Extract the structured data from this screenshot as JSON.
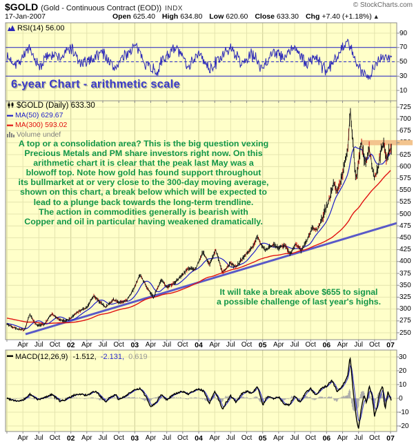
{
  "header": {
    "symbol": "$GOLD",
    "description": "(Gold - Continuous Contract (EOD))",
    "exchange": "INDX",
    "copyright": "© StockCharts.com",
    "date": "17-Jan-2007",
    "quote": {
      "open_label": "Open",
      "open": "625.40",
      "high_label": "High",
      "high": "634.80",
      "low_label": "Low",
      "low": "620.60",
      "close_label": "Close",
      "close": "633.30",
      "chg_label": "Chg",
      "chg": "+7.40 (+1.18%)",
      "direction_icon": "▲"
    }
  },
  "rsi_panel": {
    "label": "RSI(14) 56.00"
  },
  "title_banner": "6-year Chart - arithmetic scale",
  "main_panel": {
    "legend": [
      {
        "label": "$GOLD (Daily) 633.30",
        "color": "#000000",
        "icon": "candlestick-icon"
      },
      {
        "label": "MA(50) 629.67",
        "color": "#1C1CC8",
        "icon": "line-swatch-icon"
      },
      {
        "label": "MA(300) 593.02",
        "color": "#E01010",
        "icon": "line-swatch-icon"
      },
      {
        "label": "Volume undef",
        "color": "#808080",
        "icon": "histogram-icon"
      }
    ],
    "annotation_main": {
      "lines": [
        "A top or a consolidation area? This is the big question vexing",
        "Precious Metals and PM share investors right now. On this",
        "arithmetic chart it is clear that the peak last May was a",
        "blowoff top. Note how gold has found support throughout",
        "its bullmarket at or very close to the 300-day moving average,",
        "shown on this chart, a break below which will be expected to",
        "lead to a plunge back towards the long-term trendline.",
        "The action in commodities generally is bearish with",
        "Copper and oil in particular having weakened dramatically."
      ]
    },
    "annotation_secondary": {
      "lines": [
        "It will take a break above $655 to signal",
        "a possible challenge of last year's highs."
      ]
    }
  },
  "macd_panel": {
    "label": "MACD(12,26,9)",
    "value_macd": "-1.512,",
    "value_signal": "-2.131,",
    "value_hist": "0.619"
  },
  "x_axis": {
    "ticks": [
      {
        "month": 3,
        "label": "Apr",
        "bold": false
      },
      {
        "month": 6,
        "label": "Jul",
        "bold": false
      },
      {
        "month": 9,
        "label": "Oct",
        "bold": false
      },
      {
        "month": 12,
        "label": "02",
        "bold": true
      },
      {
        "month": 15,
        "label": "Apr",
        "bold": false
      },
      {
        "month": 18,
        "label": "Jul",
        "bold": false
      },
      {
        "month": 21,
        "label": "Oct",
        "bold": false
      },
      {
        "month": 24,
        "label": "03",
        "bold": true
      },
      {
        "month": 27,
        "label": "Apr",
        "bold": false
      },
      {
        "month": 30,
        "label": "Jul",
        "bold": false
      },
      {
        "month": 33,
        "label": "Oct",
        "bold": false
      },
      {
        "month": 36,
        "label": "04",
        "bold": true
      },
      {
        "month": 39,
        "label": "Apr",
        "bold": false
      },
      {
        "month": 42,
        "label": "Jul",
        "bold": false
      },
      {
        "month": 45,
        "label": "Oct",
        "bold": false
      },
      {
        "month": 48,
        "label": "05",
        "bold": true
      },
      {
        "month": 51,
        "label": "Apr",
        "bold": false
      },
      {
        "month": 54,
        "label": "Jul",
        "bold": false
      },
      {
        "month": 57,
        "label": "Oct",
        "bold": false
      },
      {
        "month": 60,
        "label": "06",
        "bold": true
      },
      {
        "month": 63,
        "label": "Apr",
        "bold": false
      },
      {
        "month": 66,
        "label": "Jul",
        "bold": false
      },
      {
        "month": 69,
        "label": "Oct",
        "bold": false
      },
      {
        "month": 72,
        "label": "07",
        "bold": true
      }
    ]
  },
  "colors": {
    "panel_bg": "#FFFFC9",
    "grid": "#E4E4AE",
    "grid_year": "#CCCC96",
    "border": "#8B8B8B",
    "rsi_line": "#2B28B8",
    "guide_blue": "#2222C8",
    "ma50": "#1C1CC8",
    "ma300": "#E01010",
    "trendline": "#5A5AC8",
    "bar_up": "#111111",
    "bar_down": "#CC1111",
    "macd_line": "#000000",
    "macd_signal": "#2828CC",
    "macd_hist": "#A9A9A9",
    "band": "#F3C48E",
    "annotation_green": "#129648",
    "title_blue": "#3C3CC8"
  },
  "chart_data": [
    {
      "type": "line",
      "panel": "rsi",
      "title": "RSI(14)",
      "current": 56.0,
      "x_months_since_jan2001": [
        0,
        2,
        4,
        6,
        8,
        10,
        12,
        14,
        16,
        18,
        20,
        22,
        24,
        26,
        28,
        30,
        32,
        34,
        36,
        38,
        40,
        42,
        44,
        46,
        48,
        50,
        52,
        54,
        56,
        58,
        60,
        62,
        64,
        66,
        68,
        70,
        72
      ],
      "values": [
        55,
        48,
        68,
        42,
        62,
        55,
        70,
        45,
        55,
        65,
        40,
        58,
        72,
        50,
        35,
        60,
        68,
        45,
        62,
        38,
        55,
        70,
        48,
        60,
        42,
        66,
        54,
        72,
        46,
        58,
        34,
        62,
        78,
        40,
        30,
        56,
        56
      ],
      "ylim": [
        0,
        100
      ],
      "axis_ticks": [
        90,
        70,
        50,
        30,
        10
      ],
      "hlines": {
        "overbought": 70,
        "mid": 50,
        "oversold": 30
      },
      "grid": true,
      "legend_position": "top-left"
    },
    {
      "type": "ohlc",
      "panel": "price",
      "title": "$GOLD (Daily)",
      "current": 633.3,
      "points": [
        [
          -16,
          300
        ],
        [
          -12,
          291
        ],
        [
          -8,
          284
        ],
        [
          -4,
          274
        ],
        [
          0,
          268
        ],
        [
          1,
          263
        ],
        [
          2,
          258
        ],
        [
          3.3,
          256
        ],
        [
          4.3,
          289
        ],
        [
          5.5,
          266
        ],
        [
          7,
          268
        ],
        [
          8.5,
          291
        ],
        [
          9.5,
          279
        ],
        [
          11,
          274
        ],
        [
          12,
          281
        ],
        [
          13,
          292
        ],
        [
          14,
          298
        ],
        [
          15,
          304
        ],
        [
          16.3,
          327
        ],
        [
          17.5,
          314
        ],
        [
          18.5,
          304
        ],
        [
          20,
          320
        ],
        [
          21,
          314
        ],
        [
          22.5,
          318
        ],
        [
          24,
          347
        ],
        [
          25,
          373
        ],
        [
          26.3,
          344
        ],
        [
          27.5,
          324
        ],
        [
          29,
          363
        ],
        [
          30,
          345
        ],
        [
          31.5,
          356
        ],
        [
          33,
          372
        ],
        [
          34,
          386
        ],
        [
          35.3,
          383
        ],
        [
          36,
          400
        ],
        [
          36.8,
          420
        ],
        [
          38,
          393
        ],
        [
          39.2,
          425
        ],
        [
          40.5,
          376
        ],
        [
          42,
          397
        ],
        [
          43,
          388
        ],
        [
          44.2,
          407
        ],
        [
          45.3,
          420
        ],
        [
          46.3,
          432
        ],
        [
          47,
          454
        ],
        [
          47.8,
          435
        ],
        [
          48.5,
          423
        ],
        [
          50,
          437
        ],
        [
          51,
          428
        ],
        [
          52.2,
          435
        ],
        [
          53.2,
          416
        ],
        [
          54.2,
          438
        ],
        [
          55.2,
          424
        ],
        [
          56.3,
          444
        ],
        [
          57.3,
          470
        ],
        [
          58.3,
          467
        ],
        [
          59.3,
          494
        ],
        [
          60,
          516
        ],
        [
          60.8,
          541
        ],
        [
          61.3,
          567
        ],
        [
          62,
          548
        ],
        [
          63,
          584
        ],
        [
          64,
          642
        ],
        [
          64.45,
          722
        ],
        [
          65.5,
          569
        ],
        [
          66.5,
          651
        ],
        [
          67.3,
          604
        ],
        [
          68,
          640
        ],
        [
          68.9,
          575
        ],
        [
          69.6,
          596
        ],
        [
          70.3,
          638
        ],
        [
          70.8,
          647
        ],
        [
          71.3,
          611
        ],
        [
          71.8,
          637
        ],
        [
          72.2,
          633
        ]
      ],
      "ma50": {
        "period": 50,
        "current": 629.67,
        "window_months": 2.3
      },
      "ma300": {
        "period": 300,
        "current": 593.02,
        "window_months": 13.6
      },
      "trendline": {
        "from_month": 3.5,
        "from_value": 247,
        "to_month": 73.2,
        "to_value": 481
      },
      "resistance_band": {
        "value": 650,
        "from_month": 66.6
      },
      "ylim": [
        235,
        740
      ],
      "axis_ticks": [
        725,
        700,
        675,
        650,
        625,
        600,
        575,
        550,
        525,
        500,
        475,
        450,
        425,
        400,
        375,
        350,
        325,
        300,
        275,
        250
      ],
      "grid": true,
      "scale": "arithmetic",
      "span_years": 6
    },
    {
      "type": "line+histogram",
      "panel": "macd",
      "title": "MACD(12,26,9)",
      "current": {
        "macd": -1.512,
        "signal": -2.131,
        "hist": 0.619
      },
      "points": [
        [
          0,
          0
        ],
        [
          1,
          -1
        ],
        [
          2,
          -2
        ],
        [
          3,
          -1.5
        ],
        [
          4.3,
          3
        ],
        [
          5,
          1
        ],
        [
          6,
          -1
        ],
        [
          7,
          0.5
        ],
        [
          8.5,
          3
        ],
        [
          9,
          1
        ],
        [
          10,
          -2
        ],
        [
          11,
          -1
        ],
        [
          12,
          1
        ],
        [
          13,
          3
        ],
        [
          14,
          3
        ],
        [
          15,
          2
        ],
        [
          16.5,
          5
        ],
        [
          17,
          4
        ],
        [
          18.5,
          -3
        ],
        [
          19,
          0
        ],
        [
          20.5,
          3
        ],
        [
          21,
          -1
        ],
        [
          22,
          1
        ],
        [
          23,
          4
        ],
        [
          24,
          6
        ],
        [
          25,
          7
        ],
        [
          26,
          2
        ],
        [
          27,
          -6
        ],
        [
          28,
          -3
        ],
        [
          29,
          3
        ],
        [
          30,
          -1
        ],
        [
          31,
          2
        ],
        [
          32,
          4
        ],
        [
          33,
          5
        ],
        [
          34,
          3
        ],
        [
          35,
          5
        ],
        [
          36,
          7
        ],
        [
          37,
          5
        ],
        [
          38,
          -4
        ],
        [
          39,
          5
        ],
        [
          40,
          -3
        ],
        [
          40.5,
          -8
        ],
        [
          41,
          -4
        ],
        [
          42,
          2
        ],
        [
          43,
          -3
        ],
        [
          44,
          3
        ],
        [
          45,
          5
        ],
        [
          46,
          4
        ],
        [
          47,
          8
        ],
        [
          47.5,
          3
        ],
        [
          48,
          -5
        ],
        [
          49,
          2
        ],
        [
          50,
          0
        ],
        [
          51,
          1
        ],
        [
          52,
          -4
        ],
        [
          53,
          -5
        ],
        [
          54,
          2
        ],
        [
          55,
          -3
        ],
        [
          56,
          4
        ],
        [
          57,
          7
        ],
        [
          58,
          2
        ],
        [
          59,
          7
        ],
        [
          60,
          9
        ],
        [
          61,
          13
        ],
        [
          62,
          5
        ],
        [
          63,
          9
        ],
        [
          64,
          17
        ],
        [
          64.4,
          31
        ],
        [
          65,
          5
        ],
        [
          65.6,
          -15
        ],
        [
          66,
          -22
        ],
        [
          66.5,
          -8
        ],
        [
          67,
          2
        ],
        [
          67.5,
          -3
        ],
        [
          68,
          9
        ],
        [
          68.5,
          3
        ],
        [
          69,
          -13
        ],
        [
          69.5,
          -6
        ],
        [
          70,
          5
        ],
        [
          70.5,
          9
        ],
        [
          71,
          -8
        ],
        [
          71.5,
          5
        ],
        [
          72.2,
          -1.5
        ]
      ],
      "ylim": [
        -25,
        33
      ],
      "axis_ticks": [
        30,
        20,
        10,
        0,
        -10,
        -20
      ],
      "grid": true
    }
  ]
}
